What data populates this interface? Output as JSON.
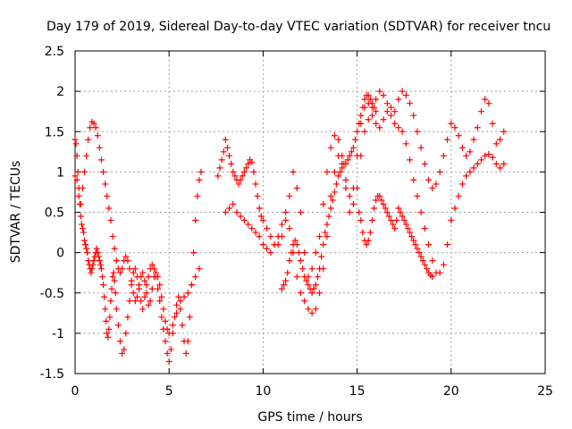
{
  "chart_data": {
    "type": "scatter",
    "title": "Day 179 of 2019, Sidereal Day-to-day VTEC variation (SDTVAR) for receiver tncu",
    "xlabel": "GPS time / hours",
    "ylabel": "SDTVAR / TECUs",
    "xlim": [
      0,
      25
    ],
    "ylim": [
      -1.5,
      2.5
    ],
    "xticks": [
      "0",
      "5",
      "10",
      "15",
      "20",
      "25"
    ],
    "yticks": [
      "-1.5",
      "-1",
      "-0.5",
      "0",
      "0.5",
      "1",
      "1.5",
      "2",
      "2.5"
    ],
    "grid": true,
    "marker": "+",
    "color": "#ff0000",
    "series": [
      {
        "x": [
          0.0,
          0.05,
          0.1,
          0.15,
          0.2,
          0.25,
          0.3,
          0.35,
          0.4,
          0.45,
          0.5,
          0.55,
          0.6,
          0.65,
          0.7,
          0.75,
          0.8,
          0.85,
          0.9,
          0.95,
          1.0,
          1.05,
          1.1,
          1.15,
          1.2,
          1.25,
          1.3,
          1.35,
          1.4,
          1.45,
          1.5,
          1.55,
          1.6,
          1.65,
          1.7,
          1.75,
          1.8,
          1.85,
          1.9,
          1.95,
          2.0,
          2.05,
          2.1,
          2.15,
          2.2,
          2.3,
          2.4,
          2.5,
          2.6,
          2.7,
          2.8,
          2.9,
          3.0,
          3.1,
          3.2,
          3.3,
          3.4,
          3.5,
          3.6,
          3.7,
          3.8,
          3.9,
          4.0,
          4.1,
          4.2,
          4.3,
          4.4,
          4.5,
          4.6,
          4.7,
          4.8,
          4.9,
          5.0,
          5.1,
          5.2,
          5.3,
          5.4,
          5.5,
          5.6,
          5.7,
          5.8,
          5.9,
          6.0,
          6.1,
          6.2,
          6.3,
          6.4,
          6.5,
          6.6,
          6.7
        ],
        "y": [
          1.4,
          1.35,
          1.2,
          1.0,
          0.8,
          0.6,
          0.45,
          0.35,
          0.3,
          0.25,
          0.15,
          0.1,
          0.05,
          0.0,
          -0.1,
          -0.15,
          -0.2,
          -0.25,
          -0.2,
          -0.15,
          -0.1,
          -0.05,
          0.0,
          0.05,
          0.0,
          -0.05,
          -0.1,
          -0.15,
          -0.2,
          -0.3,
          -0.4,
          -0.55,
          -0.7,
          -0.85,
          -1.0,
          -1.05,
          -0.95,
          -0.8,
          -0.6,
          -0.45,
          -0.3,
          -0.25,
          -0.35,
          -0.5,
          -0.7,
          -0.9,
          -1.1,
          -1.25,
          -1.2,
          -1.0,
          -0.8,
          -0.6,
          -0.4,
          -0.25,
          -0.2,
          -0.3,
          -0.45,
          -0.6,
          -0.7,
          -0.55,
          -0.4,
          -0.3,
          -0.2,
          -0.15,
          -0.2,
          -0.3,
          -0.45,
          -0.6,
          -0.8,
          -0.95,
          -1.1,
          -1.25,
          -1.35,
          -1.2,
          -1.0,
          -0.8,
          -0.65,
          -0.55,
          -0.7,
          -0.9,
          -1.1,
          -1.25,
          -1.1,
          -0.8,
          -0.4,
          0.0,
          0.4,
          0.7,
          0.9,
          1.0
        ]
      },
      {
        "x": [
          0.0,
          0.1,
          0.2,
          0.3,
          0.4,
          0.5,
          0.6,
          0.7,
          0.8,
          0.9,
          1.0,
          1.1,
          1.2,
          1.3,
          1.4,
          1.5,
          1.6,
          1.7,
          1.8,
          1.9,
          2.0,
          2.1,
          2.2,
          2.3,
          2.4,
          2.5,
          2.6,
          2.7,
          2.8,
          2.9,
          3.0,
          3.1,
          3.2,
          3.3,
          3.4,
          3.5,
          3.6,
          3.7,
          3.8,
          3.9,
          4.0,
          4.1,
          4.2,
          4.3,
          4.4,
          4.5,
          4.6,
          4.7,
          4.8,
          4.9,
          5.0,
          5.2,
          5.4,
          5.6,
          5.8,
          6.0,
          6.2,
          6.4,
          6.6
        ],
        "y": [
          0.95,
          0.9,
          0.7,
          0.6,
          0.8,
          1.0,
          1.2,
          1.4,
          1.55,
          1.62,
          1.6,
          1.55,
          1.45,
          1.3,
          1.15,
          1.0,
          0.85,
          0.7,
          0.55,
          0.4,
          0.2,
          0.05,
          -0.1,
          -0.2,
          -0.25,
          -0.2,
          -0.1,
          -0.05,
          -0.1,
          -0.2,
          -0.35,
          -0.5,
          -0.6,
          -0.55,
          -0.4,
          -0.3,
          -0.25,
          -0.35,
          -0.5,
          -0.65,
          -0.6,
          -0.45,
          -0.3,
          -0.25,
          -0.3,
          -0.4,
          -0.55,
          -0.7,
          -0.85,
          -0.95,
          -1.0,
          -0.9,
          -0.75,
          -0.6,
          -0.55,
          -0.5,
          -0.4,
          -0.3,
          -0.2
        ]
      },
      {
        "x": [
          7.6,
          7.7,
          7.8,
          7.9,
          8.0,
          8.1,
          8.2,
          8.3,
          8.4,
          8.5,
          8.6,
          8.7,
          8.8,
          8.9,
          9.0,
          9.1,
          9.2,
          9.3,
          9.4,
          9.5,
          9.6,
          9.7,
          9.8,
          9.9,
          10.0,
          10.2,
          10.4,
          10.6,
          10.8,
          11.0,
          11.2,
          11.4,
          11.6,
          11.8,
          12.0,
          12.2,
          12.4,
          12.6,
          12.8,
          13.0,
          13.2,
          13.4,
          13.6,
          13.8,
          14.0,
          14.2,
          14.4,
          14.6,
          14.8,
          15.0,
          15.2,
          15.4,
          15.6,
          15.8,
          16.0,
          16.2,
          16.4,
          16.6,
          16.8,
          17.0,
          17.2,
          17.4,
          17.6,
          17.8,
          18.0,
          18.2,
          18.4,
          18.6,
          18.8,
          19.0,
          19.2,
          19.4,
          19.6,
          19.8,
          20.0,
          20.2,
          20.4,
          20.6,
          20.8,
          21.0,
          21.2,
          21.4,
          21.6,
          21.8,
          22.0,
          22.2,
          22.4,
          22.6,
          22.8
        ],
        "y": [
          0.95,
          1.05,
          1.15,
          1.25,
          1.4,
          1.3,
          1.2,
          1.1,
          1.0,
          0.95,
          0.9,
          0.85,
          0.9,
          0.95,
          1.0,
          1.05,
          1.1,
          1.15,
          1.12,
          1.0,
          0.85,
          0.7,
          0.55,
          0.45,
          0.4,
          0.3,
          0.2,
          0.1,
          0.1,
          0.2,
          0.4,
          0.7,
          1.0,
          0.8,
          0.5,
          0.0,
          -0.3,
          -0.2,
          0.0,
          0.2,
          0.6,
          1.0,
          1.3,
          1.45,
          1.4,
          1.2,
          0.8,
          0.5,
          0.8,
          1.2,
          1.6,
          1.8,
          1.85,
          1.8,
          1.9,
          2.0,
          1.95,
          1.85,
          1.8,
          1.75,
          1.9,
          2.0,
          1.95,
          1.85,
          1.7,
          1.5,
          1.3,
          1.1,
          0.9,
          0.8,
          0.85,
          1.0,
          1.2,
          1.4,
          1.6,
          1.55,
          1.45,
          1.3,
          1.2,
          1.25,
          1.4,
          1.55,
          1.75,
          1.9,
          1.85,
          1.6,
          1.35,
          1.4,
          1.5
        ]
      },
      {
        "x": [
          8.0,
          8.2,
          8.4,
          8.6,
          8.8,
          9.0,
          9.2,
          9.4,
          9.6,
          9.8,
          10.0,
          10.2,
          10.4,
          10.6,
          10.8,
          11.0,
          11.2,
          11.4,
          11.6,
          11.8,
          12.0,
          12.2,
          12.4,
          12.6,
          12.8,
          13.0,
          13.2,
          13.4,
          13.6,
          13.8,
          14.0,
          14.2,
          14.4,
          14.6,
          14.8,
          15.0,
          15.2,
          15.4,
          15.6,
          15.8,
          16.0,
          16.2,
          16.4,
          16.6,
          16.8,
          17.0,
          17.2,
          17.4,
          17.6,
          17.8,
          18.0,
          18.2,
          18.4,
          18.6,
          18.8,
          19.0,
          19.2,
          19.4,
          19.6,
          19.8,
          20.0,
          20.2,
          20.4,
          20.6,
          20.8,
          21.0,
          21.2,
          21.4,
          21.6,
          21.8,
          22.0,
          22.2,
          22.4,
          22.6,
          22.8
        ],
        "y": [
          0.5,
          0.55,
          0.6,
          0.5,
          0.45,
          0.4,
          0.35,
          0.3,
          0.25,
          0.2,
          0.1,
          0.05,
          0.0,
          0.1,
          0.2,
          0.35,
          0.5,
          0.3,
          0.0,
          -0.3,
          -0.5,
          -0.6,
          -0.7,
          -0.75,
          -0.7,
          -0.5,
          -0.2,
          0.2,
          0.7,
          1.0,
          1.2,
          1.1,
          0.9,
          0.7,
          0.6,
          0.8,
          1.2,
          1.5,
          1.65,
          1.7,
          1.6,
          1.55,
          1.65,
          1.75,
          1.7,
          1.6,
          1.55,
          1.5,
          1.35,
          1.15,
          0.9,
          0.7,
          0.5,
          0.3,
          0.1,
          -0.1,
          -0.25,
          -0.25,
          -0.15,
          0.1,
          0.4,
          0.55,
          0.7,
          0.85,
          0.95,
          1.0,
          1.05,
          1.1,
          1.15,
          1.2,
          1.22,
          1.18,
          1.1,
          1.05,
          1.1
        ]
      },
      {
        "x": [
          11.0,
          11.1,
          11.2,
          11.3,
          11.4,
          11.5,
          11.6,
          11.7,
          11.8,
          11.9,
          12.0,
          12.1,
          12.2,
          12.3,
          12.4,
          12.5,
          12.6,
          12.7,
          12.8,
          12.9,
          13.0,
          13.1,
          13.2,
          13.3,
          13.4,
          13.5,
          13.6,
          13.7,
          13.8,
          13.9,
          14.0,
          14.1,
          14.2,
          14.3,
          14.4,
          14.5,
          14.6,
          14.7,
          14.8,
          14.9,
          15.0,
          15.1,
          15.2,
          15.3,
          15.4,
          15.5,
          15.6,
          15.7,
          15.8,
          15.9,
          16.0
        ],
        "y": [
          -0.45,
          -0.4,
          -0.35,
          -0.25,
          -0.1,
          0.0,
          0.1,
          0.15,
          0.1,
          0.0,
          -0.1,
          -0.2,
          -0.3,
          -0.35,
          -0.4,
          -0.45,
          -0.5,
          -0.45,
          -0.4,
          -0.3,
          -0.2,
          -0.05,
          0.1,
          0.25,
          0.35,
          0.45,
          0.55,
          0.65,
          0.75,
          0.85,
          0.95,
          1.0,
          1.05,
          1.1,
          1.1,
          1.15,
          1.2,
          1.25,
          1.3,
          1.4,
          1.5,
          1.6,
          1.7,
          1.8,
          1.9,
          1.95,
          1.95,
          1.9,
          1.85,
          1.8,
          1.75
        ]
      },
      {
        "x": [
          15.1,
          15.2,
          15.3,
          15.4,
          15.5,
          15.6,
          15.7,
          15.8,
          15.9,
          16.0,
          16.1,
          16.2,
          16.3,
          16.4,
          16.5,
          16.6,
          16.7,
          16.8,
          16.9,
          17.0,
          17.1,
          17.2,
          17.3,
          17.4,
          17.5,
          17.6,
          17.7,
          17.8,
          17.9,
          18.0,
          18.1,
          18.2,
          18.3,
          18.4,
          18.5,
          18.6,
          18.7,
          18.8,
          18.9,
          19.0
        ],
        "y": [
          0.5,
          0.4,
          0.25,
          0.15,
          0.1,
          0.15,
          0.25,
          0.4,
          0.55,
          0.65,
          0.7,
          0.7,
          0.65,
          0.6,
          0.55,
          0.5,
          0.45,
          0.4,
          0.35,
          0.3,
          0.4,
          0.55,
          0.5,
          0.45,
          0.4,
          0.35,
          0.3,
          0.25,
          0.2,
          0.15,
          0.1,
          0.05,
          0.0,
          -0.05,
          -0.1,
          -0.15,
          -0.2,
          -0.25,
          -0.28,
          -0.3
        ]
      }
    ]
  }
}
